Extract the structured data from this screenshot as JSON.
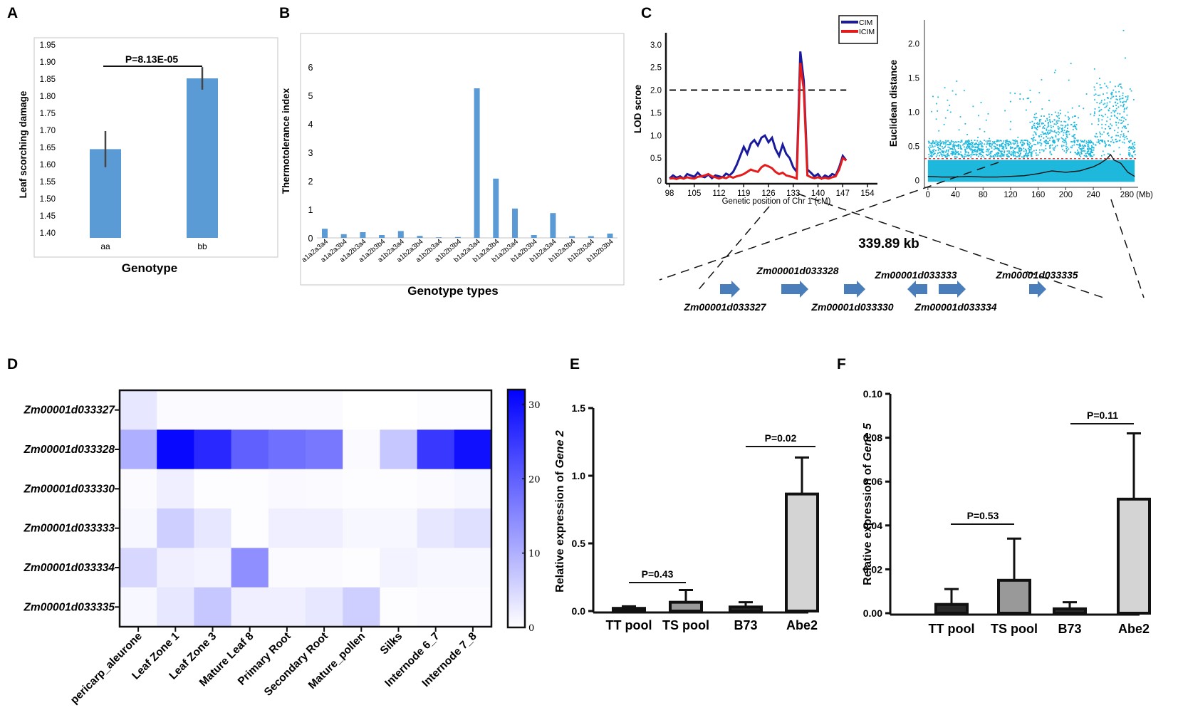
{
  "chart_data": [
    {
      "panel": "A",
      "type": "bar",
      "categories": [
        "aa",
        "bb"
      ],
      "values": [
        1.645,
        1.852
      ],
      "errors": [
        0.053,
        0.033
      ],
      "ylim": [
        1.4,
        1.95
      ],
      "yticks": [
        "1.40",
        "1.45",
        "1.50",
        "1.55",
        "1.60",
        "1.65",
        "1.70",
        "1.75",
        "1.80",
        "1.85",
        "1.90",
        "1.95"
      ],
      "xlabel": "Genotype",
      "ylabel": "Leaf scorching damage",
      "pvalue": "P=8.13E-05"
    },
    {
      "panel": "B",
      "type": "bar",
      "categories": [
        "a1a2a3a4",
        "a1a2a3b4",
        "a1a2b3a4",
        "a1a2b3b4",
        "a1b2a3a4",
        "a1b2a3b4",
        "a1b2b3a4",
        "a1b2b3b4",
        "b1a2a3a4",
        "b1a2a3b4",
        "b1a2b3a4",
        "b1a2b3b4",
        "b1b2a3a4",
        "b1b2a3b4",
        "b1b2b3a4",
        "b1b2b3b4"
      ],
      "values": [
        0.32,
        0.13,
        0.2,
        0.1,
        0.24,
        0.07,
        0.02,
        0.03,
        5.25,
        2.08,
        1.03,
        0.1,
        0.87,
        0.06,
        0.06,
        0.15
      ],
      "ylim": [
        0,
        6
      ],
      "yticks": [
        "0",
        "1",
        "2",
        "3",
        "4",
        "5",
        "6"
      ],
      "xlabel": "Genotype types",
      "ylabel": "Thermotolerance  index"
    },
    {
      "panel": "C-left",
      "type": "line",
      "title": "",
      "xlabel": "Genetic position of Chr 1 (cM)",
      "ylabel": "LOD scroe",
      "xlim": [
        98,
        154
      ],
      "ylim": [
        0,
        3.2
      ],
      "xticks": [
        "98",
        "105",
        "112",
        "119",
        "126",
        "133",
        "140",
        "147",
        "154"
      ],
      "yticks": [
        "0",
        "0.5",
        "1.0",
        "1.5",
        "2.0",
        "2.5",
        "3.0"
      ],
      "threshold": 2.0,
      "legend": [
        "CIM",
        "ICIM"
      ],
      "series": [
        {
          "name": "CIM",
          "color": "#1a1a9c",
          "x": [
            98,
            99,
            100,
            101,
            102,
            103,
            104,
            105,
            106,
            107,
            108,
            109,
            110,
            111,
            112,
            113,
            114,
            115,
            116,
            117,
            118,
            119,
            120,
            121,
            122,
            123,
            124,
            125,
            126,
            127,
            128,
            129,
            130,
            131,
            132,
            133,
            134,
            135,
            136,
            137,
            138,
            139,
            140,
            141,
            142,
            143,
            144,
            145,
            146,
            147,
            148
          ],
          "y": [
            0.05,
            0.12,
            0.07,
            0.1,
            0.05,
            0.15,
            0.12,
            0.09,
            0.18,
            0.1,
            0.08,
            0.14,
            0.06,
            0.12,
            0.1,
            0.08,
            0.16,
            0.12,
            0.2,
            0.35,
            0.55,
            0.75,
            0.6,
            0.82,
            0.9,
            0.78,
            0.95,
            1.0,
            0.85,
            0.95,
            0.7,
            0.55,
            0.8,
            0.6,
            0.5,
            0.3,
            0.2,
            2.85,
            2.2,
            0.25,
            0.18,
            0.1,
            0.15,
            0.05,
            0.12,
            0.08,
            0.15,
            0.12,
            0.3,
            0.55,
            0.45
          ]
        },
        {
          "name": "ICIM",
          "color": "#e51b1b",
          "x": [
            98,
            99,
            100,
            101,
            102,
            103,
            104,
            105,
            106,
            107,
            108,
            109,
            110,
            111,
            112,
            113,
            114,
            115,
            116,
            117,
            118,
            119,
            120,
            121,
            122,
            123,
            124,
            125,
            126,
            127,
            128,
            129,
            130,
            131,
            132,
            133,
            134,
            135,
            136,
            137,
            138,
            139,
            140,
            141,
            142,
            143,
            144,
            145,
            146,
            147,
            148
          ],
          "y": [
            0.05,
            0.06,
            0.04,
            0.07,
            0.05,
            0.08,
            0.06,
            0.05,
            0.09,
            0.1,
            0.12,
            0.15,
            0.1,
            0.08,
            0.05,
            0.08,
            0.06,
            0.1,
            0.07,
            0.1,
            0.12,
            0.15,
            0.2,
            0.25,
            0.22,
            0.2,
            0.3,
            0.35,
            0.32,
            0.28,
            0.2,
            0.15,
            0.18,
            0.12,
            0.1,
            0.08,
            0.05,
            2.6,
            2.0,
            0.12,
            0.08,
            0.06,
            0.08,
            0.05,
            0.07,
            0.05,
            0.08,
            0.1,
            0.25,
            0.5,
            0.45
          ]
        }
      ]
    },
    {
      "panel": "C-right",
      "type": "scatter",
      "ylabel": "Euclidean distance",
      "xlim": [
        -5,
        305
      ],
      "ylim": [
        -0.1,
        2.35
      ],
      "xticks": [
        "0",
        "40",
        "80",
        "120",
        "160",
        "200",
        "240",
        "280 (Mb)"
      ],
      "yticks": [
        "0",
        "0.5",
        "1.0",
        "1.5",
        "2.0"
      ],
      "threshold": 0.32,
      "fit_x": [
        0,
        20,
        40,
        60,
        80,
        100,
        120,
        140,
        160,
        180,
        200,
        220,
        240,
        250,
        260,
        265,
        270,
        280,
        290,
        300
      ],
      "fit_y": [
        0.06,
        0.05,
        0.05,
        0.06,
        0.05,
        0.05,
        0.06,
        0.07,
        0.1,
        0.14,
        0.12,
        0.14,
        0.2,
        0.25,
        0.32,
        0.38,
        0.3,
        0.25,
        0.12,
        0.06
      ]
    },
    {
      "panel": "D",
      "type": "heatmap",
      "rows": [
        "Zm00001d033327",
        "Zm00001d033328",
        "Zm00001d033330",
        "Zm00001d033333",
        "Zm00001d033334",
        "Zm00001d033335"
      ],
      "columns": [
        "pericarp_aleurone",
        "Leaf Zone 1",
        "Leaf Zone 3",
        "Mature Leaf 8",
        "Primary Root",
        "Secondary Root",
        "Mature_pollen",
        "Silks",
        "Internode 6_7",
        "Internode 7_8"
      ],
      "values": [
        [
          3,
          0.5,
          0.5,
          0.5,
          0.5,
          0.5,
          0,
          0,
          0.3,
          0.3
        ],
        [
          10,
          31,
          27,
          20,
          18,
          17,
          0.5,
          7,
          25,
          30
        ],
        [
          0.5,
          2,
          0.3,
          0.3,
          0.8,
          0.5,
          0.3,
          0.3,
          0.5,
          1
        ],
        [
          1,
          6,
          3,
          0.3,
          2,
          2,
          1,
          1,
          3,
          4
        ],
        [
          5,
          2,
          1.5,
          14,
          0.5,
          0.5,
          0.3,
          1.5,
          1,
          1
        ],
        [
          1,
          3,
          7,
          2,
          2,
          3,
          6,
          0.3,
          0.5,
          0.5
        ]
      ],
      "colorbar_ticks": [
        "0",
        "10",
        "20",
        "30"
      ],
      "vmax": 32
    },
    {
      "panel": "E",
      "type": "bar",
      "categories": [
        "TT pool",
        "TS pool",
        "B73",
        "Abe2"
      ],
      "values": [
        0.02,
        0.065,
        0.03,
        0.865
      ],
      "errors": [
        0.015,
        0.09,
        0.035,
        0.27
      ],
      "colors": [
        "#2a2a2a",
        "#999999",
        "#2a2a2a",
        "#d4d4d4"
      ],
      "ylim": [
        0,
        1.5
      ],
      "yticks": [
        "0.0",
        "0.5",
        "1.0",
        "1.5"
      ],
      "ylabel_prefix": "Relative expression of ",
      "ylabel_gene": "Gene 2",
      "pvalues": [
        "P=0.43",
        "P=0.02"
      ]
    },
    {
      "panel": "F",
      "type": "bar",
      "categories": [
        "TT pool",
        "TS pool",
        "B73",
        "Abe2"
      ],
      "values": [
        0.004,
        0.015,
        0.002,
        0.052
      ],
      "errors": [
        0.007,
        0.019,
        0.003,
        0.03
      ],
      "colors": [
        "#2a2a2a",
        "#999999",
        "#2a2a2a",
        "#d4d4d4"
      ],
      "ylim": [
        0,
        0.1
      ],
      "yticks": [
        "0.00",
        "0.02",
        "0.04",
        "0.06",
        "0.08",
        "0.10"
      ],
      "ylabel_prefix": "Relative expression of ",
      "ylabel_gene": "Gene 5",
      "pvalues": [
        "P=0.53",
        "P=0.11"
      ]
    }
  ],
  "panel_labels": [
    "A",
    "B",
    "C",
    "D",
    "E",
    "F"
  ],
  "gene_region": {
    "size_label": "339.89 kb",
    "genes_top": [
      "Zm00001d033328",
      "Zm00001d033333",
      "Zm00001d033335"
    ],
    "genes_bottom": [
      "Zm00001d033327",
      "Zm00001d033330",
      "Zm00001d033334"
    ],
    "arrow_color": "#4a7ebb"
  }
}
